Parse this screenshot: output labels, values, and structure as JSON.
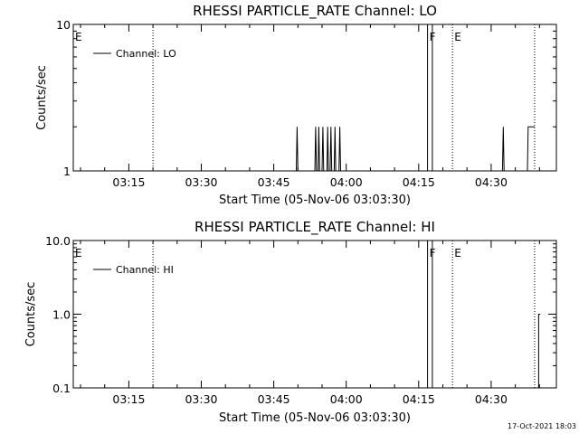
{
  "timestamp": "17-Oct-2021 18:03",
  "chart_data": [
    {
      "type": "line",
      "title": "RHESSI PARTICLE_RATE Channel: LO",
      "xlabel": "Start Time (05-Nov-06 03:03:30)",
      "ylabel": "Counts/sec",
      "yscale": "log",
      "xlim": [
        "03:03:30",
        "04:43:30"
      ],
      "ylim": [
        1,
        10
      ],
      "x_ticks": [
        "03:15",
        "03:30",
        "03:45",
        "04:00",
        "04:15",
        "04:30"
      ],
      "y_ticks": [
        "1",
        "10"
      ],
      "legend": {
        "label": "Channel: LO",
        "position": "top-left"
      },
      "markers": [
        {
          "x": "03:03:30",
          "label": "E"
        },
        {
          "x": "04:16:50",
          "label": "F"
        },
        {
          "x": "04:22:00",
          "label": "E"
        }
      ],
      "dotted_lines_x": [
        "03:20:00",
        "04:22:00",
        "04:39:00"
      ],
      "series": [
        {
          "name": "Channel: LO",
          "points": [
            [
              "03:49:40",
              1
            ],
            [
              "03:49:50",
              2
            ],
            [
              "03:50:00",
              1
            ],
            [
              "03:53:30",
              1
            ],
            [
              "03:53:40",
              2
            ],
            [
              "03:53:50",
              1
            ],
            [
              "03:54:10",
              1
            ],
            [
              "03:54:20",
              2
            ],
            [
              "03:54:30",
              1
            ],
            [
              "03:55:00",
              1
            ],
            [
              "03:55:10",
              2
            ],
            [
              "03:55:20",
              1
            ],
            [
              "03:56:00",
              1
            ],
            [
              "03:56:10",
              2
            ],
            [
              "03:56:20",
              1
            ],
            [
              "03:56:40",
              1
            ],
            [
              "03:56:50",
              2
            ],
            [
              "03:57:00",
              1
            ],
            [
              "03:57:30",
              1
            ],
            [
              "03:57:40",
              2
            ],
            [
              "03:57:50",
              1
            ],
            [
              "03:58:30",
              1
            ],
            [
              "03:58:40",
              2
            ],
            [
              "03:58:50",
              1
            ],
            [
              "04:16:50",
              1
            ],
            [
              "04:16:50",
              10
            ],
            [
              "04:17:50",
              10
            ],
            [
              "04:17:50",
              1
            ],
            [
              "04:32:20",
              1
            ],
            [
              "04:32:30",
              2
            ],
            [
              "04:32:40",
              1
            ],
            [
              "04:37:30",
              1
            ],
            [
              "04:37:40",
              2
            ],
            [
              "04:39:00",
              2
            ]
          ]
        }
      ]
    },
    {
      "type": "line",
      "title": "RHESSI PARTICLE_RATE Channel: HI",
      "xlabel": "Start Time (05-Nov-06 03:03:30)",
      "ylabel": "Counts/sec",
      "yscale": "log",
      "xlim": [
        "03:03:30",
        "04:43:30"
      ],
      "ylim": [
        0.1,
        10
      ],
      "x_ticks": [
        "03:15",
        "03:30",
        "03:45",
        "04:00",
        "04:15",
        "04:30"
      ],
      "y_ticks": [
        "10.0",
        "1.0",
        "0.1"
      ],
      "legend": {
        "label": "Channel: HI",
        "position": "top-left"
      },
      "markers": [
        {
          "x": "03:03:30",
          "label": "E"
        },
        {
          "x": "04:16:50",
          "label": "F"
        },
        {
          "x": "04:22:00",
          "label": "E"
        }
      ],
      "dotted_lines_x": [
        "03:20:00",
        "04:22:00",
        "04:39:00"
      ],
      "series": [
        {
          "name": "Channel: HI",
          "points": [
            [
              "04:16:50",
              0.1
            ],
            [
              "04:16:50",
              10
            ],
            [
              "04:17:50",
              10
            ],
            [
              "04:17:50",
              0.1
            ],
            [
              "04:39:50",
              0.1
            ],
            [
              "04:39:50",
              1
            ],
            [
              "04:40:10",
              1
            ]
          ]
        }
      ]
    }
  ]
}
